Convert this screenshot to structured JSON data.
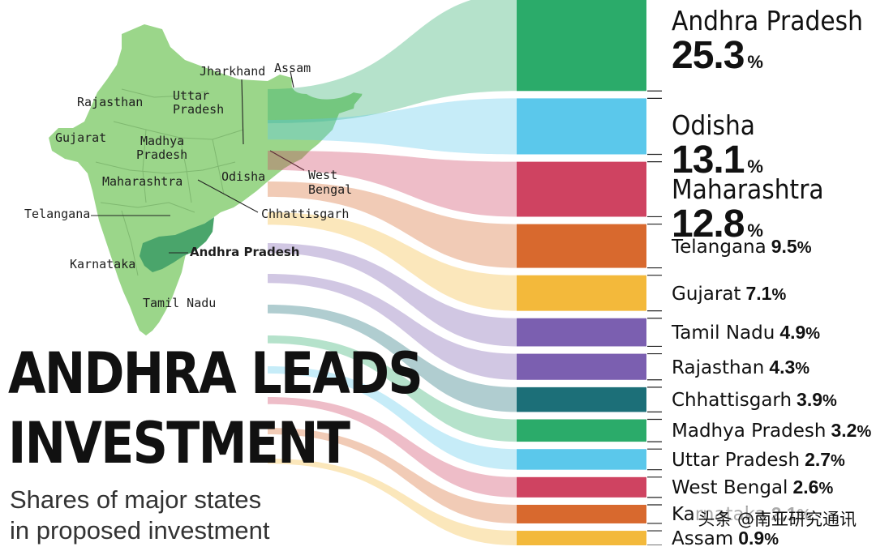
{
  "chart_data": {
    "type": "bar",
    "title": "ANDHRA LEADS INVESTMENT",
    "subtitle": "Shares of major states in proposed investment",
    "unit": "%",
    "categories": [
      "Andhra Pradesh",
      "Odisha",
      "Maharashtra",
      "Telangana",
      "Gujarat",
      "Tamil Nadu",
      "Rajasthan",
      "Chhattisgarh",
      "Madhya Pradesh",
      "Uttar Pradesh",
      "West Bengal",
      "Karnataka",
      "Assam"
    ],
    "values": [
      25.3,
      13.1,
      12.8,
      9.5,
      7.1,
      4.9,
      4.3,
      3.9,
      3.2,
      2.7,
      2.6,
      2.1,
      0.9
    ],
    "values_text": [
      "25.3",
      "13.1",
      "12.8",
      "9.5",
      "7.1",
      "4.9",
      "4.3",
      "3.9",
      "3.2",
      "2.7",
      "2.6",
      "2.1",
      "0.9"
    ],
    "colors": [
      "#2bab6a",
      "#5bc8eb",
      "#cf4361",
      "#d8692e",
      "#f3b93b",
      "#7b5fb0",
      "#7b5fb0",
      "#1c6f78",
      "#2bab6a",
      "#5bc8eb",
      "#cf4361",
      "#d8692e",
      "#f3b93b"
    ],
    "highlight_color": "#2bab6a"
  },
  "headline": {
    "line1": "ANDHRA LEADS",
    "line2": "INVESTMENT"
  },
  "subtitle": {
    "line1": "Shares of major states",
    "line2": "in proposed investment"
  },
  "map": {
    "labels": [
      "Jharkhand",
      "Assam",
      "Rajasthan",
      "Uttar",
      "Pradesh",
      "Gujarat",
      "Madhya",
      "Pradesh",
      "Maharashtra",
      "Odisha",
      "West",
      "Bengal",
      "Telangana",
      "Chhattisgarh",
      "Andhra Pradesh",
      "Karnataka",
      "Tamil Nadu"
    ],
    "land_color": "#9bd68a",
    "highlight_color": "#4aa56b"
  },
  "watermark": "头条 @南亚研究通讯"
}
